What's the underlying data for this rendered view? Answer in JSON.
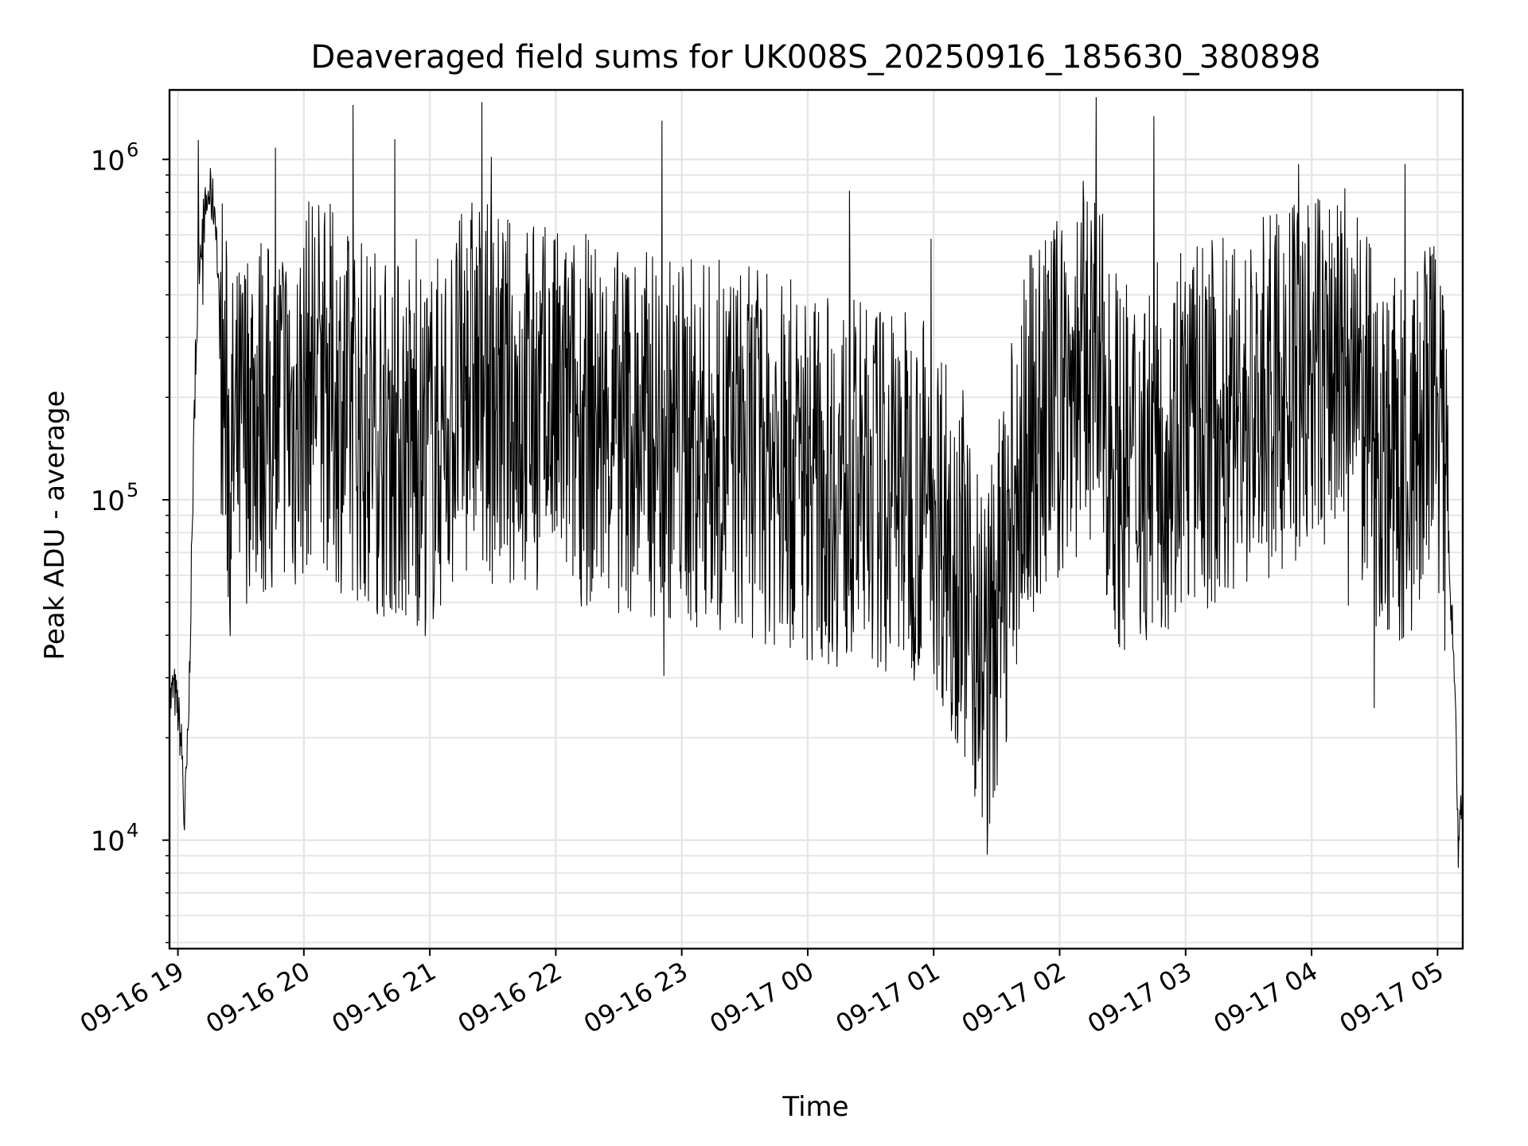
{
  "chart_data": {
    "type": "line",
    "title": "Deaveraged field sums for UK008S_20250916_185630_380898",
    "xlabel": "Time",
    "ylabel": "Peak ADU - average",
    "yscale": "log",
    "ylim": [
      4800,
      1600000
    ],
    "xlim": [
      "2025-09-16 18:56:00",
      "2025-09-17 05:12:00"
    ],
    "grid": true,
    "line_color": "#000000",
    "grid_color": "#e6e6e6",
    "x_ticks": [
      {
        "t": "2025-09-16 19:00",
        "label": "09-16 19"
      },
      {
        "t": "2025-09-16 20:00",
        "label": "09-16 20"
      },
      {
        "t": "2025-09-16 21:00",
        "label": "09-16 21"
      },
      {
        "t": "2025-09-16 22:00",
        "label": "09-16 22"
      },
      {
        "t": "2025-09-16 23:00",
        "label": "09-16 23"
      },
      {
        "t": "2025-09-17 00:00",
        "label": "09-17 00"
      },
      {
        "t": "2025-09-17 01:00",
        "label": "09-17 01"
      },
      {
        "t": "2025-09-17 02:00",
        "label": "09-17 02"
      },
      {
        "t": "2025-09-17 03:00",
        "label": "09-17 03"
      },
      {
        "t": "2025-09-17 04:00",
        "label": "09-17 04"
      },
      {
        "t": "2025-09-17 05:00",
        "label": "09-17 05"
      }
    ],
    "y_ticks": [
      {
        "value": 10000,
        "base": "10",
        "exp": "4"
      },
      {
        "value": 100000,
        "base": "10",
        "exp": "5"
      },
      {
        "value": 1000000,
        "base": "10",
        "exp": "6"
      }
    ],
    "series": [
      {
        "x": [
          "2025-09-16 18:56",
          "2025-09-16 18:58",
          "2025-09-16 19:00",
          "2025-09-16 19:02",
          "2025-09-16 19:03",
          "2025-09-16 19:05",
          "2025-09-16 19:08",
          "2025-09-16 19:10",
          "2025-09-16 19:12",
          "2025-09-16 19:15",
          "2025-09-16 19:18",
          "2025-09-16 19:20",
          "2025-09-16 19:22",
          "2025-09-16 19:25",
          "2025-09-16 19:30",
          "2025-09-16 19:35",
          "2025-09-16 19:40",
          "2025-09-16 19:45",
          "2025-09-16 19:50",
          "2025-09-16 19:55",
          "2025-09-16 20:00",
          "2025-09-16 20:05",
          "2025-09-16 20:10",
          "2025-09-16 20:20",
          "2025-09-16 20:30",
          "2025-09-16 20:45",
          "2025-09-16 21:00",
          "2025-09-16 21:15",
          "2025-09-16 21:20",
          "2025-09-16 21:30",
          "2025-09-16 21:45",
          "2025-09-16 22:00",
          "2025-09-16 22:30",
          "2025-09-16 23:00",
          "2025-09-16 23:30",
          "2025-09-17 00:00",
          "2025-09-17 00:20",
          "2025-09-17 00:40",
          "2025-09-17 01:00",
          "2025-09-17 01:15",
          "2025-09-17 01:25",
          "2025-09-17 01:35",
          "2025-09-17 01:45",
          "2025-09-17 02:00",
          "2025-09-17 02:15",
          "2025-09-17 02:30",
          "2025-09-17 03:00",
          "2025-09-17 03:30",
          "2025-09-17 04:00",
          "2025-09-17 04:15",
          "2025-09-17 04:30",
          "2025-09-17 04:45",
          "2025-09-17 05:00",
          "2025-09-17 05:05",
          "2025-09-17 05:08",
          "2025-09-17 05:10",
          "2025-09-17 05:12"
        ],
        "y": [
          25000,
          28000,
          24000,
          18000,
          11000,
          21000,
          200000,
          500000,
          650000,
          800000,
          700000,
          300000,
          200000,
          130000,
          150000,
          200000,
          180000,
          160000,
          200000,
          170000,
          200000,
          250000,
          220000,
          180000,
          170000,
          150000,
          140000,
          200000,
          230000,
          200000,
          190000,
          180000,
          160000,
          150000,
          140000,
          120000,
          110000,
          110000,
          100000,
          60000,
          30000,
          70000,
          150000,
          200000,
          260000,
          120000,
          160000,
          180000,
          230000,
          250000,
          150000,
          120000,
          200000,
          80000,
          30000,
          9000,
          15000
        ]
      }
    ]
  }
}
